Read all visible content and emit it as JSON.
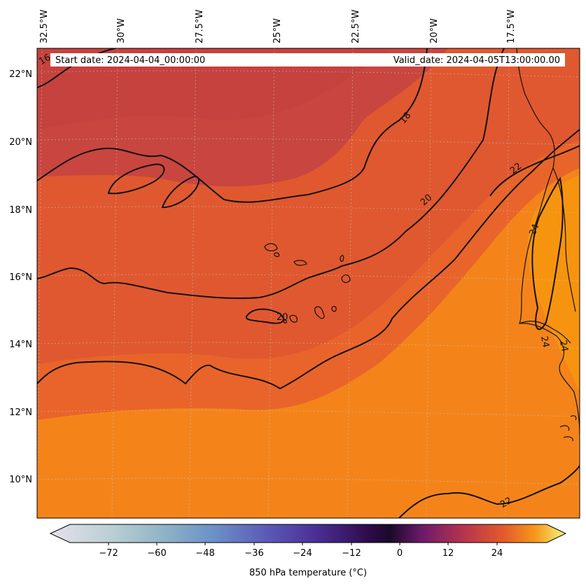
{
  "header": {
    "start_date": "Start date: 2024-04-04_00:00:00",
    "valid_date": "Valid_date: 2024-04-05T13:00:00.00"
  },
  "map": {
    "lon_labels": [
      "32.5°W",
      "30°W",
      "27.5°W",
      "25°W",
      "22.5°W",
      "20°W",
      "17.5°W"
    ],
    "lat_labels": [
      "22°N",
      "20°N",
      "18°N",
      "16°N",
      "14°N",
      "12°N",
      "10°N"
    ],
    "contour_labels": [
      "16",
      "18",
      "20",
      "20",
      "22",
      "22",
      "24",
      "24",
      "24"
    ]
  },
  "colorbar": {
    "label": "850 hPa temperature (°C)",
    "ticks": [
      "−72",
      "−60",
      "−48",
      "−36",
      "−24",
      "−12",
      "0",
      "12",
      "24"
    ],
    "range": [
      -84,
      36
    ]
  },
  "colors": {
    "warm_dark": "#c8463f",
    "warm_mid": "#e0582f",
    "warm_orange": "#f4841a",
    "warm_bright": "#f79412",
    "contour": "#111111"
  }
}
